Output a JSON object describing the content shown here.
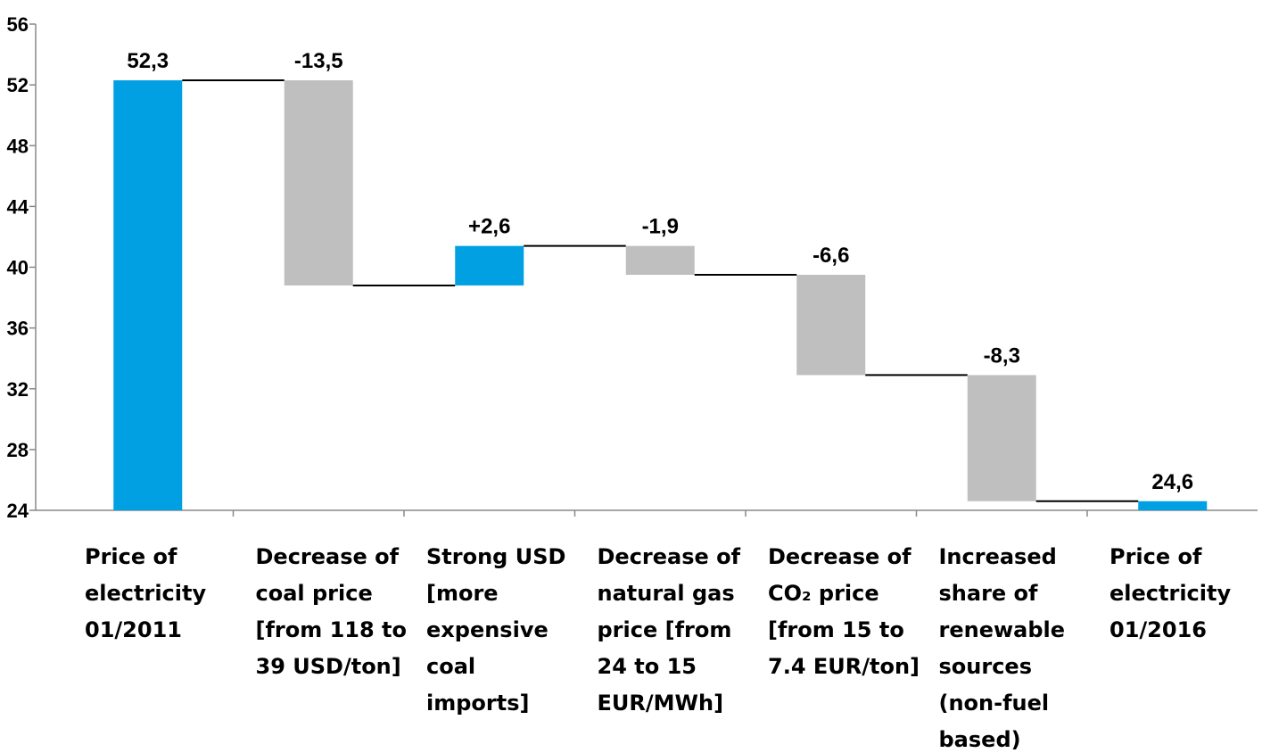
{
  "chart_data": {
    "type": "waterfall",
    "categories": [
      "Price of electricity 01/2011",
      "Decrease of coal price [from 118 to 39 USD/ton]",
      "Strong USD [more expensive coal imports]",
      "Decrease of natural gas price [from 24 to 15 EUR/MWh]",
      "Decrease of CO₂ price [from 15 to 7.4 EUR/ton]",
      "Increased share of renewable sources (non-fuel based)",
      "Price of electricity 01/2016"
    ],
    "values": [
      52.3,
      -13.5,
      2.6,
      -1.9,
      -6.6,
      -8.3,
      24.6
    ],
    "value_labels": [
      "52,3",
      "-13,5",
      "+2,6",
      "-1,9",
      "-6,6",
      "-8,3",
      "24,6"
    ],
    "totals": [
      true,
      false,
      false,
      false,
      false,
      false,
      true
    ],
    "colors": [
      "#00a0e3",
      "#bfbfbf",
      "#00a0e3",
      "#bfbfbf",
      "#bfbfbf",
      "#bfbfbf",
      "#00a0e3"
    ],
    "ylim": [
      24,
      56
    ],
    "yticks": [
      24,
      28,
      32,
      36,
      40,
      44,
      48,
      52,
      56
    ]
  }
}
